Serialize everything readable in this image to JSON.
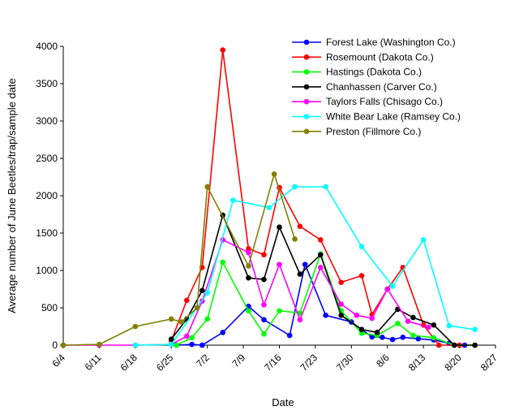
{
  "chart_data": {
    "type": "line",
    "title": "",
    "xlabel": "Date",
    "ylabel": "Average number of June Beetles/trap/sample date",
    "xlim": [
      0,
      84
    ],
    "ylim": [
      0,
      4000
    ],
    "x_ticks": [
      {
        "day": 0,
        "label": "6/4"
      },
      {
        "day": 7,
        "label": "6/11"
      },
      {
        "day": 14,
        "label": "6/18"
      },
      {
        "day": 21,
        "label": "6/25"
      },
      {
        "day": 28,
        "label": "7/2"
      },
      {
        "day": 35,
        "label": "7/9"
      },
      {
        "day": 42,
        "label": "7/16"
      },
      {
        "day": 49,
        "label": "7/23"
      },
      {
        "day": 56,
        "label": "7/30"
      },
      {
        "day": 63,
        "label": "8/6"
      },
      {
        "day": 70,
        "label": "8/13"
      },
      {
        "day": 77,
        "label": "8/20"
      },
      {
        "day": 84,
        "label": "8/27"
      }
    ],
    "y_ticks": [
      0,
      500,
      1000,
      1500,
      2000,
      2500,
      3000,
      3500,
      4000
    ],
    "legend_position": "top-right",
    "series": [
      {
        "name": "Forest Lake (Washington Co.)",
        "color": "#0000ff",
        "x": [
          22,
          25,
          27,
          31,
          36,
          39,
          44,
          47,
          51,
          56,
          60,
          62,
          64,
          66,
          69,
          72,
          75,
          78
        ],
        "y": [
          0,
          10,
          0,
          170,
          520,
          340,
          130,
          1080,
          400,
          310,
          110,
          105,
          75,
          105,
          85,
          70,
          25,
          0
        ]
      },
      {
        "name": "Rosemount (Dakota Co.)",
        "color": "#ff0000",
        "x": [
          21,
          24,
          27,
          31,
          36,
          39,
          42,
          46,
          50,
          54,
          58,
          60,
          63,
          66,
          70,
          73,
          77
        ],
        "y": [
          60,
          600,
          1040,
          3950,
          1290,
          1210,
          2110,
          1590,
          1410,
          840,
          930,
          410,
          750,
          1040,
          270,
          0,
          0
        ]
      },
      {
        "name": "Hastings (Dakota Co.)",
        "color": "#00ff00",
        "x": [
          22,
          25,
          28,
          31,
          36,
          39,
          42,
          46,
          50,
          54,
          58,
          61,
          65,
          68,
          72,
          76,
          80
        ],
        "y": [
          0,
          100,
          350,
          1110,
          460,
          150,
          460,
          430,
          1220,
          460,
          160,
          130,
          290,
          130,
          100,
          0,
          0
        ]
      },
      {
        "name": "Chanhassen (Carver Co.)",
        "color": "#000000",
        "x": [
          21,
          24,
          27,
          31,
          36,
          39,
          42,
          46,
          50,
          54,
          58,
          61,
          65,
          68,
          72,
          76,
          80
        ],
        "y": [
          80,
          350,
          730,
          1740,
          900,
          880,
          1580,
          950,
          1210,
          400,
          210,
          170,
          480,
          370,
          270,
          0,
          0
        ]
      },
      {
        "name": "Taylors Falls (Chisago Co.)",
        "color": "#ff00ff",
        "x": [
          0,
          7,
          14,
          21,
          24,
          27,
          31,
          36,
          39,
          42,
          46,
          50,
          54,
          57,
          60,
          63,
          67,
          71
        ],
        "y": [
          0,
          0,
          0,
          10,
          120,
          590,
          1410,
          1240,
          540,
          1080,
          340,
          1040,
          550,
          400,
          360,
          750,
          320,
          240
        ]
      },
      {
        "name": "White Bear Lake (Ramsey Co.)",
        "color": "#00ffff",
        "x": [
          14,
          21,
          28,
          33,
          40,
          45,
          51,
          58,
          64,
          70,
          75,
          80
        ],
        "y": [
          0,
          10,
          700,
          1940,
          1840,
          2120,
          2120,
          1320,
          790,
          1410,
          260,
          210
        ]
      },
      {
        "name": "Preston (Fillmore Co.)",
        "color": "#808000",
        "x": [
          0,
          7,
          14,
          21,
          23,
          26,
          28,
          36,
          41,
          45
        ],
        "y": [
          0,
          10,
          250,
          350,
          310,
          500,
          2120,
          1060,
          2290,
          1420
        ]
      }
    ]
  }
}
